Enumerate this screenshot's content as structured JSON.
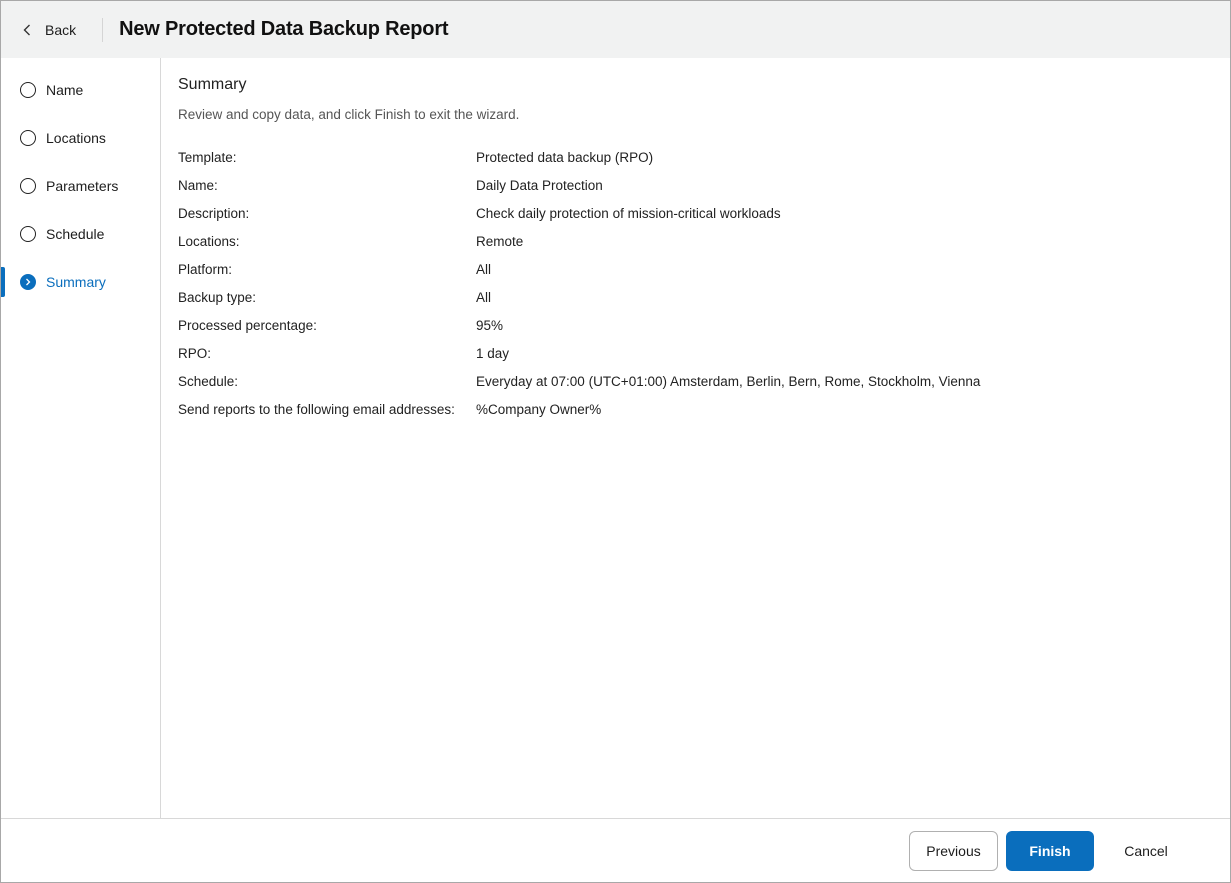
{
  "header": {
    "back_label": "Back",
    "title": "New Protected Data Backup Report"
  },
  "sidebar": {
    "steps": [
      {
        "label": "Name",
        "active": false
      },
      {
        "label": "Locations",
        "active": false
      },
      {
        "label": "Parameters",
        "active": false
      },
      {
        "label": "Schedule",
        "active": false
      },
      {
        "label": "Summary",
        "active": true
      }
    ]
  },
  "main": {
    "heading": "Summary",
    "subtitle": "Review and copy data, and click Finish to exit the wizard.",
    "rows": [
      {
        "label": "Template:",
        "value": "Protected data backup (RPO)"
      },
      {
        "label": "Name:",
        "value": "Daily Data Protection"
      },
      {
        "label": "Description:",
        "value": "Check daily protection of mission-critical workloads"
      },
      {
        "label": "Locations:",
        "value": "Remote"
      },
      {
        "label": "Platform:",
        "value": "All"
      },
      {
        "label": "Backup type:",
        "value": "All"
      },
      {
        "label": "Processed percentage:",
        "value": "95%"
      },
      {
        "label": "RPO:",
        "value": "1 day"
      },
      {
        "label": "Schedule:",
        "value": "Everyday at 07:00 (UTC+01:00) Amsterdam, Berlin, Bern, Rome, Stockholm, Vienna"
      },
      {
        "label": "Send reports to the following email addresses:",
        "value": "%Company Owner%"
      }
    ]
  },
  "footer": {
    "previous_label": "Previous",
    "finish_label": "Finish",
    "cancel_label": "Cancel"
  },
  "colors": {
    "accent": "#0a6ebd",
    "header_bg": "#f1f2f2"
  }
}
